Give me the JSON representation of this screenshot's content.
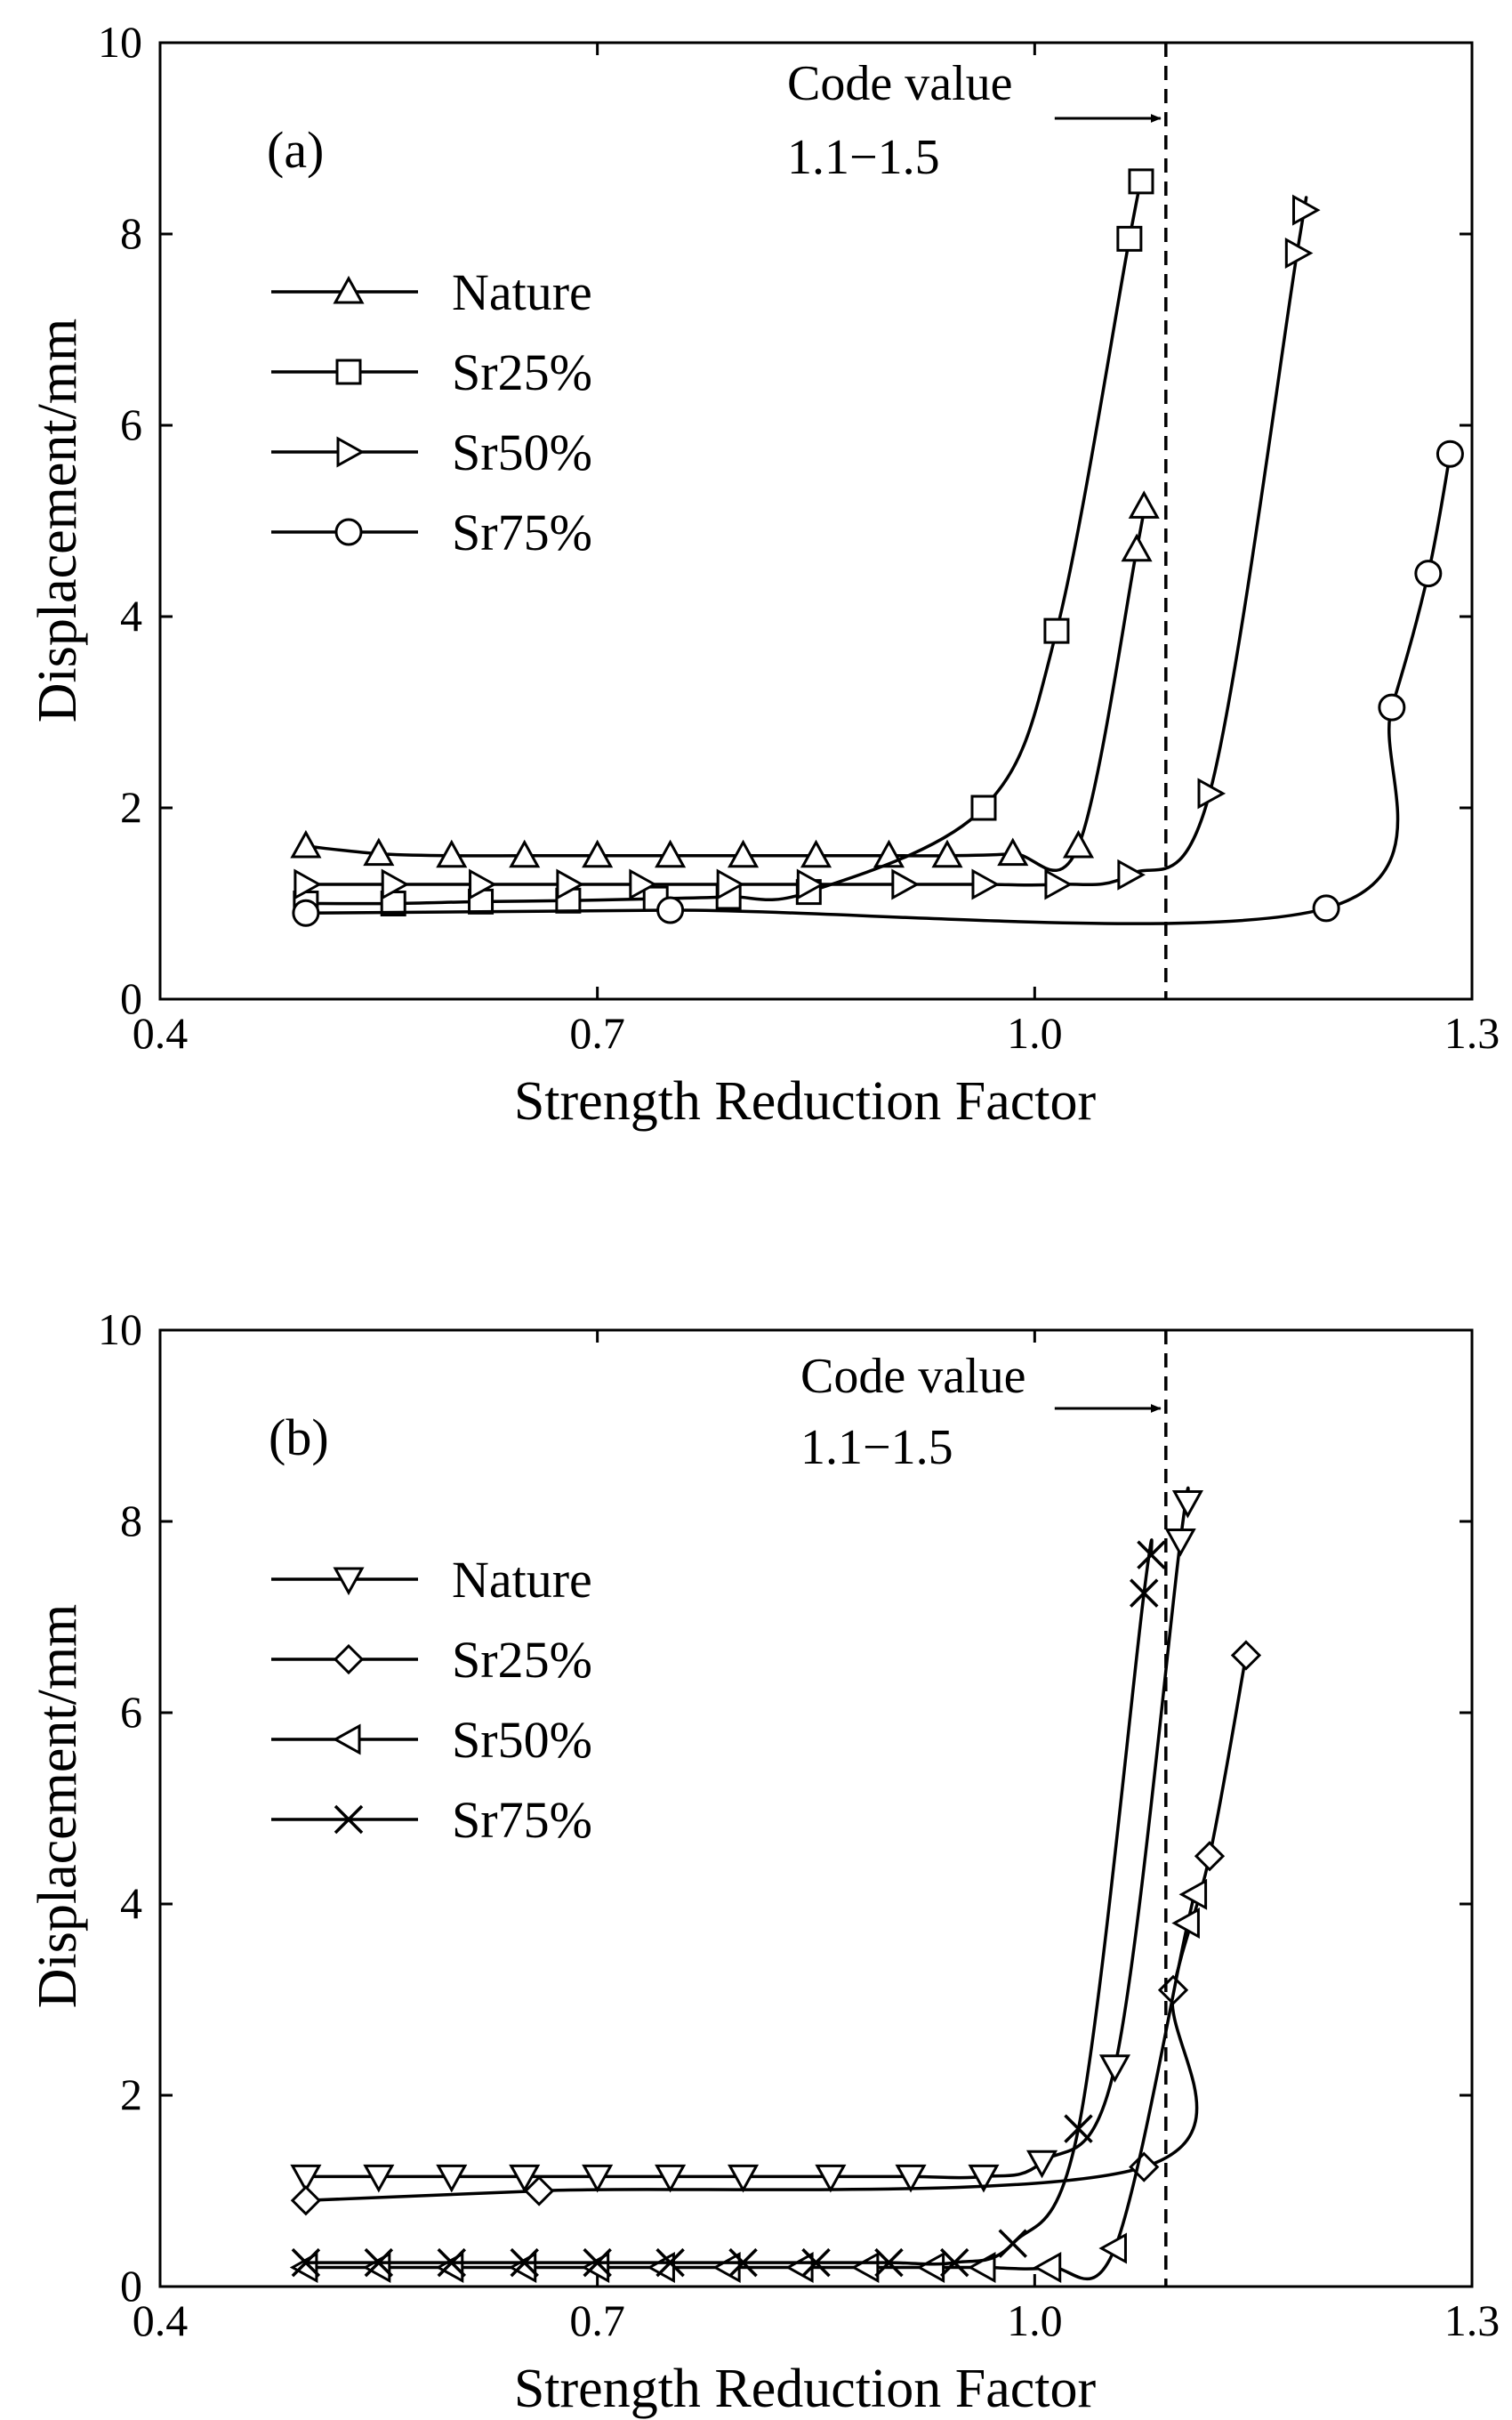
{
  "chart_data": [
    {
      "type": "line",
      "panel_label": "(a)",
      "xlabel": "Strength Reduction Factor",
      "ylabel": "Displacement/mm",
      "xlim": [
        0.4,
        1.3
      ],
      "ylim": [
        0,
        10
      ],
      "xticks": [
        0.4,
        0.7,
        1.0,
        1.3
      ],
      "xtick_labels": [
        "0.4",
        "0.7",
        "1.0",
        "1.3"
      ],
      "yticks": [
        0,
        2,
        4,
        6,
        8,
        10
      ],
      "ytick_labels": [
        "0",
        "2",
        "4",
        "6",
        "8",
        "10"
      ],
      "legend_position": "upper-left",
      "code_value": {
        "x": 1.09,
        "label_line1": "Code value",
        "label_line2": "1.1−1.5"
      },
      "series": [
        {
          "name": "Nature",
          "marker": "triangle-up",
          "x": [
            0.5,
            0.55,
            0.6,
            0.65,
            0.7,
            0.75,
            0.8,
            0.85,
            0.9,
            0.94,
            0.985,
            1.03,
            1.07,
            1.075
          ],
          "y": [
            1.6,
            1.52,
            1.5,
            1.5,
            1.5,
            1.5,
            1.5,
            1.5,
            1.5,
            1.5,
            1.52,
            1.6,
            4.7,
            5.15
          ]
        },
        {
          "name": "Sr25%",
          "marker": "square",
          "x": [
            0.5,
            0.56,
            0.62,
            0.68,
            0.74,
            0.79,
            0.845,
            0.965,
            1.015,
            1.065,
            1.073
          ],
          "y": [
            1.0,
            1.0,
            1.02,
            1.03,
            1.05,
            1.07,
            1.12,
            2.0,
            3.85,
            7.95,
            8.55
          ]
        },
        {
          "name": "Sr50%",
          "marker": "triangle-right",
          "x": [
            0.5,
            0.56,
            0.62,
            0.68,
            0.73,
            0.79,
            0.845,
            0.91,
            0.965,
            1.015,
            1.065,
            1.12,
            1.18,
            1.185
          ],
          "y": [
            1.2,
            1.2,
            1.2,
            1.2,
            1.2,
            1.2,
            1.2,
            1.2,
            1.2,
            1.2,
            1.3,
            2.15,
            7.8,
            8.25
          ]
        },
        {
          "name": "Sr75%",
          "marker": "circle",
          "x": [
            0.5,
            0.75,
            1.2,
            1.245,
            1.27,
            1.285
          ],
          "y": [
            0.9,
            0.93,
            0.95,
            3.05,
            4.45,
            5.7
          ]
        }
      ]
    },
    {
      "type": "line",
      "panel_label": "(b)",
      "xlabel": "Strength Reduction Factor",
      "ylabel": "Displacement/mm",
      "xlim": [
        0.4,
        1.3
      ],
      "ylim": [
        0,
        10
      ],
      "xticks": [
        0.4,
        0.7,
        1.0,
        1.3
      ],
      "xtick_labels": [
        "0.4",
        "0.7",
        "1.0",
        "1.3"
      ],
      "yticks": [
        0,
        2,
        4,
        6,
        8,
        10
      ],
      "ytick_labels": [
        "0",
        "2",
        "4",
        "6",
        "8",
        "10"
      ],
      "legend_position": "upper-left",
      "code_value": {
        "x": 1.09,
        "label_line1": "Code value",
        "label_line2": "1.1−1.5"
      },
      "series": [
        {
          "name": "Nature",
          "marker": "triangle-down",
          "x": [
            0.5,
            0.55,
            0.6,
            0.65,
            0.7,
            0.75,
            0.8,
            0.86,
            0.915,
            0.965,
            1.005,
            1.055,
            1.1,
            1.105
          ],
          "y": [
            1.15,
            1.15,
            1.15,
            1.15,
            1.15,
            1.15,
            1.15,
            1.15,
            1.15,
            1.15,
            1.3,
            2.3,
            7.8,
            8.2
          ]
        },
        {
          "name": "Sr25%",
          "marker": "diamond",
          "x": [
            0.5,
            0.66,
            1.075,
            1.095,
            1.12,
            1.145
          ],
          "y": [
            0.9,
            1.0,
            1.25,
            3.1,
            4.5,
            6.6
          ]
        },
        {
          "name": "Sr50%",
          "marker": "triangle-left",
          "x": [
            0.5,
            0.55,
            0.6,
            0.65,
            0.7,
            0.745,
            0.79,
            0.84,
            0.885,
            0.93,
            0.965,
            1.01,
            1.055,
            1.105,
            1.11
          ],
          "y": [
            0.2,
            0.2,
            0.2,
            0.2,
            0.2,
            0.2,
            0.2,
            0.2,
            0.2,
            0.2,
            0.2,
            0.2,
            0.4,
            3.8,
            4.1
          ]
        },
        {
          "name": "Sr75%",
          "marker": "x",
          "x": [
            0.5,
            0.55,
            0.6,
            0.65,
            0.7,
            0.75,
            0.8,
            0.85,
            0.9,
            0.945,
            0.985,
            1.03,
            1.075,
            1.08
          ],
          "y": [
            0.25,
            0.25,
            0.25,
            0.25,
            0.25,
            0.25,
            0.25,
            0.25,
            0.25,
            0.25,
            0.45,
            1.65,
            7.25,
            7.65
          ]
        }
      ]
    }
  ]
}
